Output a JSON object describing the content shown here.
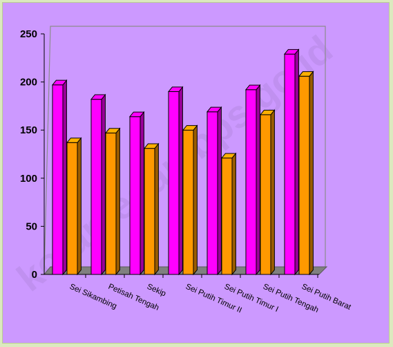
{
  "chart_data": {
    "type": "bar",
    "categories": [
      "Sei Sikambing",
      "Petisah Tengah",
      "Sekip",
      "Sei Putih Timur II",
      "Sei Putih Timur I",
      "Sei Putih Tengah",
      "Sei Putih Barat"
    ],
    "series": [
      {
        "values": [
          197,
          182,
          164,
          190,
          169,
          192,
          229
        ],
        "color": "#ff00ff"
      },
      {
        "values": [
          137,
          147,
          131,
          150,
          121,
          166,
          206
        ],
        "color": "#ff9900"
      }
    ],
    "ylim": [
      0,
      250
    ],
    "yticks": [
      0,
      50,
      100,
      150,
      200,
      250
    ],
    "grid": false,
    "style": "3d-cylinder-bars",
    "watermark": "kotamedan.bps.go.id"
  },
  "colors": {
    "background": "#cc99ff",
    "frame": "#dce9bf",
    "floor": "#808080"
  }
}
